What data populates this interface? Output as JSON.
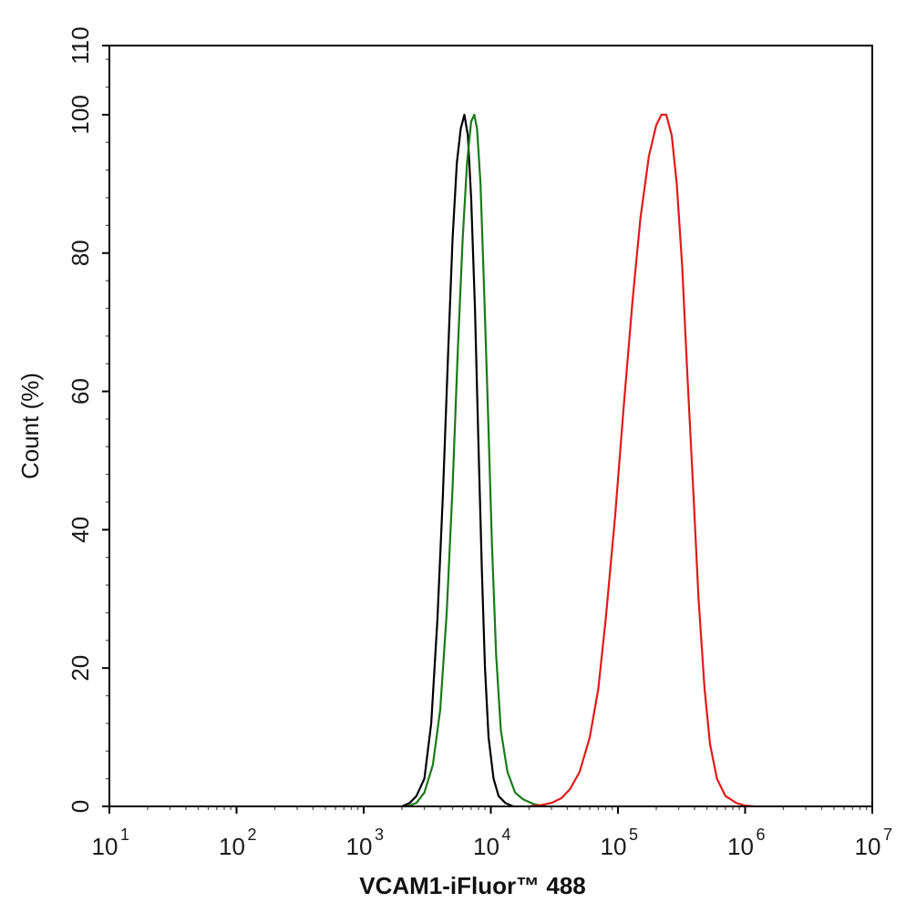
{
  "chart_data": {
    "type": "line",
    "xlabel": "VCAM1-iFluor™ 488",
    "ylabel": "Count  (%)",
    "x_scale": "log",
    "xlim": [
      10,
      10000000
    ],
    "ylim": [
      0,
      110
    ],
    "x_tick_base": "10",
    "x_tick_exponents": [
      "1",
      "2",
      "3",
      "4",
      "5",
      "6",
      "7"
    ],
    "y_ticks": [
      0,
      20,
      40,
      60,
      80,
      100,
      110
    ],
    "grid": false,
    "legend": "none",
    "series": [
      {
        "color": "#000000",
        "points": [
          [
            2000,
            0
          ],
          [
            2300,
            0.5
          ],
          [
            2600,
            1.5
          ],
          [
            3000,
            4
          ],
          [
            3400,
            12
          ],
          [
            3800,
            27
          ],
          [
            4200,
            45
          ],
          [
            4600,
            65
          ],
          [
            5000,
            82
          ],
          [
            5400,
            93
          ],
          [
            5800,
            98
          ],
          [
            6200,
            100
          ],
          [
            6600,
            97
          ],
          [
            7000,
            88
          ],
          [
            7500,
            72
          ],
          [
            8000,
            52
          ],
          [
            8500,
            34
          ],
          [
            9000,
            20
          ],
          [
            9600,
            10
          ],
          [
            10500,
            4
          ],
          [
            11500,
            1.5
          ],
          [
            13000,
            0.5
          ],
          [
            15000,
            0
          ]
        ]
      },
      {
        "color": "#1a7a1a",
        "points": [
          [
            2200,
            0
          ],
          [
            2600,
            0.5
          ],
          [
            3000,
            2
          ],
          [
            3500,
            6
          ],
          [
            4000,
            14
          ],
          [
            4500,
            28
          ],
          [
            5000,
            46
          ],
          [
            5500,
            66
          ],
          [
            6000,
            82
          ],
          [
            6500,
            93
          ],
          [
            7000,
            99
          ],
          [
            7400,
            100
          ],
          [
            7800,
            98
          ],
          [
            8300,
            90
          ],
          [
            8800,
            76
          ],
          [
            9500,
            57
          ],
          [
            10200,
            38
          ],
          [
            11000,
            22
          ],
          [
            12000,
            11
          ],
          [
            13500,
            5
          ],
          [
            15500,
            2
          ],
          [
            18000,
            1
          ],
          [
            22000,
            0.3
          ],
          [
            27000,
            0
          ]
        ]
      },
      {
        "color": "#e01a1a",
        "points": [
          [
            20000,
            0
          ],
          [
            25000,
            0.2
          ],
          [
            30000,
            0.5
          ],
          [
            36000,
            1.2
          ],
          [
            42000,
            2.5
          ],
          [
            50000,
            5
          ],
          [
            60000,
            10
          ],
          [
            70000,
            17
          ],
          [
            80000,
            27
          ],
          [
            95000,
            42
          ],
          [
            110000,
            57
          ],
          [
            130000,
            73
          ],
          [
            150000,
            85
          ],
          [
            175000,
            94
          ],
          [
            200000,
            98.5
          ],
          [
            220000,
            100
          ],
          [
            240000,
            100
          ],
          [
            265000,
            97
          ],
          [
            290000,
            90
          ],
          [
            320000,
            78
          ],
          [
            350000,
            63
          ],
          [
            390000,
            46
          ],
          [
            430000,
            30
          ],
          [
            480000,
            17
          ],
          [
            530000,
            9
          ],
          [
            600000,
            4
          ],
          [
            700000,
            1.5
          ],
          [
            850000,
            0.5
          ],
          [
            1000000,
            0.1
          ],
          [
            1200000,
            0
          ]
        ]
      }
    ]
  }
}
